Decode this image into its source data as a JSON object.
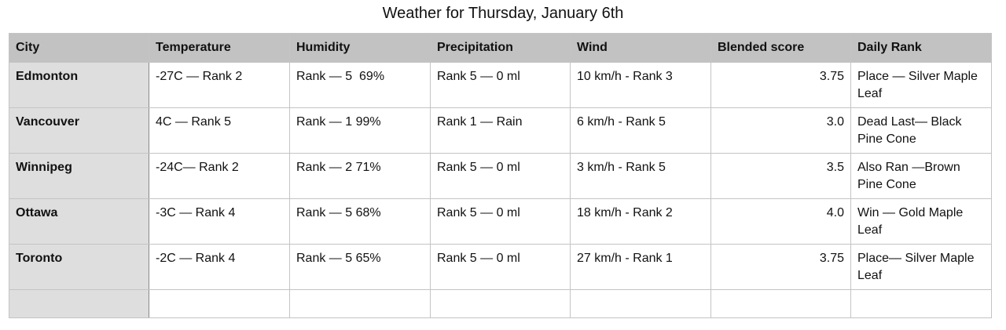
{
  "header": {
    "title": "Weather for Thursday, January 6th"
  },
  "table": {
    "columns": [
      "City",
      "Temperature",
      "Humidity",
      "Precipitation",
      "Wind",
      "Blended score",
      "Daily Rank"
    ],
    "rows": [
      [
        "Edmonton",
        "-27C — Rank 2",
        "Rank — 5  69%",
        "Rank 5 — 0 ml",
        "10 km/h - Rank 3",
        "3.75",
        "Place — Silver Maple Leaf"
      ],
      [
        "Vancouver",
        "4C — Rank 5",
        "Rank — 1 99%",
        "Rank 1 — Rain",
        "6 km/h - Rank 5",
        "3.0",
        "Dead Last— Black Pine Cone"
      ],
      [
        "Winnipeg",
        "-24C— Rank 2",
        "Rank — 2 71%",
        "Rank 5 — 0 ml",
        "3 km/h - Rank 5",
        "3.5",
        "Also Ran —Brown Pine Cone"
      ],
      [
        "Ottawa",
        "-3C — Rank 4",
        "Rank — 5 68%",
        "Rank 5 — 0 ml",
        "18 km/h - Rank 2",
        "4.0",
        "Win — Gold Maple Leaf"
      ],
      [
        "Toronto",
        "-2C — Rank 4",
        "Rank — 5 65%",
        "Rank 5 — 0 ml",
        "27 km/h - Rank 1",
        "3.75",
        "Place— Silver Maple Leaf"
      ]
    ]
  }
}
